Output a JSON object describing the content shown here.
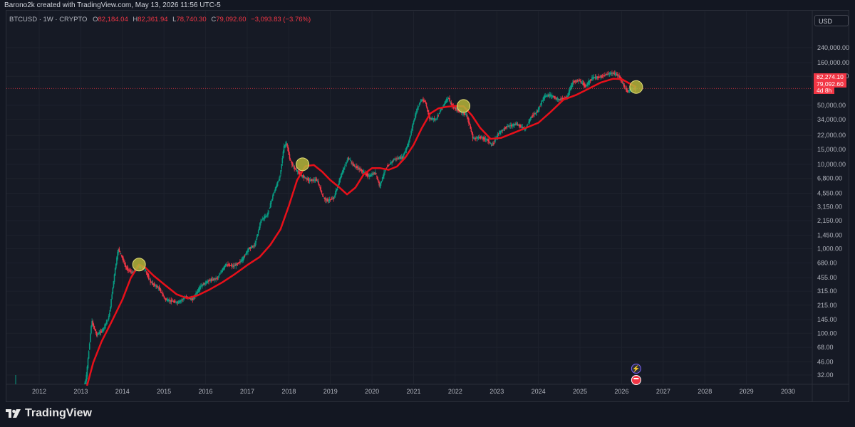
{
  "header": {
    "credit": "Barono2k created with TradingView.com, May 13, 2026 11:56 UTC-5",
    "symbol": "BTCUSD · 1W · CRYPTO",
    "open_label": "O",
    "open": "82,184.04",
    "high_label": "H",
    "high": "82,361.94",
    "low_label": "L",
    "low": "78,740.30",
    "close_label": "C",
    "close": "79,092.60",
    "change": "−3,093.83 (−3.76%)",
    "currency": "USD"
  },
  "price_tags": {
    "ma_value": "82,274.10",
    "last_price": "79,092.60",
    "countdown": "4d 8h"
  },
  "brand": {
    "name": "TradingView"
  },
  "colors": {
    "background": "#161a25",
    "ma_line": "#e8101a",
    "up_candle": "#089981",
    "down_candle": "#f23645",
    "marker_fill": "#b5b53a",
    "price_line": "#f23645"
  },
  "icons": [
    "tradingview-logo-icon",
    "event-lightning-icon",
    "us-flag-icon"
  ],
  "chart_data": {
    "type": "line",
    "y_scale": "log",
    "x_axis_ticks": [
      "2012",
      "2013",
      "2014",
      "2015",
      "2016",
      "2017",
      "2018",
      "2019",
      "2020",
      "2021",
      "2022",
      "2023",
      "2024",
      "2025",
      "2026",
      "2027",
      "2028",
      "2029",
      "2030"
    ],
    "y_axis_ticks": [
      "32.00",
      "46.00",
      "68.00",
      "100.00",
      "145.00",
      "215.00",
      "315.00",
      "455.00",
      "680.00",
      "1,000.00",
      "1,450.00",
      "2,150.00",
      "3,150.00",
      "4,550.00",
      "6,800.00",
      "10,000.00",
      "15,000.00",
      "22,000.00",
      "34,000.00",
      "50,000.00",
      "110,000.00",
      "160,000.00",
      "240,000.00"
    ],
    "ylim": [
      26,
      340000
    ],
    "series": [
      {
        "kind": "price",
        "x": [
          2013.0,
          2013.15,
          2013.28,
          2013.4,
          2013.55,
          2013.7,
          2013.85,
          2013.92,
          2014.0,
          2014.1,
          2014.25,
          2014.4,
          2014.55,
          2014.7,
          2014.9,
          2015.05,
          2015.2,
          2015.35,
          2015.55,
          2015.7,
          2015.9,
          2016.1,
          2016.3,
          2016.5,
          2016.7,
          2016.9,
          2017.05,
          2017.2,
          2017.35,
          2017.5,
          2017.65,
          2017.8,
          2017.9,
          2017.96,
          2018.05,
          2018.15,
          2018.3,
          2018.5,
          2018.7,
          2018.85,
          2018.95,
          2019.1,
          2019.3,
          2019.45,
          2019.55,
          2019.75,
          2019.95,
          2020.1,
          2020.2,
          2020.35,
          2020.55,
          2020.75,
          2020.9,
          2021.0,
          2021.1,
          2021.2,
          2021.3,
          2021.4,
          2021.55,
          2021.7,
          2021.85,
          2021.95,
          2022.1,
          2022.3,
          2022.45,
          2022.6,
          2022.8,
          2022.9,
          2023.05,
          2023.25,
          2023.5,
          2023.7,
          2023.85,
          2024.0,
          2024.15,
          2024.3,
          2024.5,
          2024.7,
          2024.85,
          2025.0,
          2025.15,
          2025.3,
          2025.5,
          2025.7,
          2025.8,
          2025.95,
          2026.05,
          2026.15,
          2026.25,
          2026.35
        ],
        "y": [
          14,
          30,
          140,
          95,
          110,
          160,
          600,
          1000,
          820,
          600,
          520,
          620,
          580,
          400,
          340,
          250,
          240,
          230,
          270,
          250,
          360,
          420,
          450,
          650,
          620,
          740,
          1000,
          1100,
          2200,
          2500,
          4500,
          7000,
          16000,
          18000,
          11000,
          9000,
          7500,
          6500,
          6500,
          4000,
          3700,
          4000,
          8000,
          12000,
          10000,
          8500,
          7200,
          8000,
          5500,
          9000,
          11500,
          12000,
          18000,
          30000,
          45000,
          58000,
          55000,
          35000,
          34000,
          47000,
          62000,
          48000,
          43000,
          38000,
          20000,
          21000,
          19500,
          16500,
          23000,
          28000,
          30000,
          26000,
          37000,
          43000,
          63000,
          66000,
          58000,
          62000,
          95000,
          98000,
          83000,
          105000,
          108000,
          118000,
          120000,
          112000,
          90000,
          72000,
          78000,
          79000
        ]
      },
      {
        "kind": "moving_average",
        "x": [
          2013.15,
          2013.3,
          2013.5,
          2013.75,
          2014.0,
          2014.2,
          2014.4,
          2014.55,
          2014.75,
          2015.0,
          2015.3,
          2015.55,
          2015.8,
          2016.1,
          2016.4,
          2016.7,
          2017.0,
          2017.3,
          2017.55,
          2017.8,
          2018.0,
          2018.2,
          2018.4,
          2018.6,
          2018.8,
          2019.0,
          2019.2,
          2019.4,
          2019.6,
          2019.8,
          2020.0,
          2020.2,
          2020.4,
          2020.6,
          2020.8,
          2021.0,
          2021.2,
          2021.4,
          2021.6,
          2021.8,
          2022.0,
          2022.2,
          2022.4,
          2022.6,
          2022.85,
          2023.1,
          2023.4,
          2023.7,
          2024.0,
          2024.3,
          2024.6,
          2024.9,
          2025.2,
          2025.5,
          2025.8,
          2026.0,
          2026.2,
          2026.35
        ],
        "y": [
          20,
          45,
          80,
          140,
          250,
          450,
          650,
          600,
          480,
          380,
          290,
          260,
          280,
          330,
          400,
          500,
          640,
          800,
          1100,
          1700,
          3200,
          6500,
          9500,
          9800,
          8200,
          6500,
          5400,
          4400,
          5300,
          7600,
          9000,
          9000,
          8600,
          9400,
          12000,
          17000,
          27000,
          40000,
          46000,
          48000,
          49000,
          48500,
          38000,
          27000,
          20000,
          20500,
          23500,
          27000,
          31000,
          42000,
          58000,
          66000,
          78000,
          93000,
          103000,
          102000,
          90000,
          82274
        ]
      }
    ],
    "highlight_points": [
      {
        "x": 2014.4,
        "y": 650
      },
      {
        "x": 2018.33,
        "y": 10000
      },
      {
        "x": 2022.2,
        "y": 49000
      },
      {
        "x": 2026.35,
        "y": 82274
      }
    ],
    "last_price": 79092.6,
    "legend": "none",
    "grid": true
  }
}
